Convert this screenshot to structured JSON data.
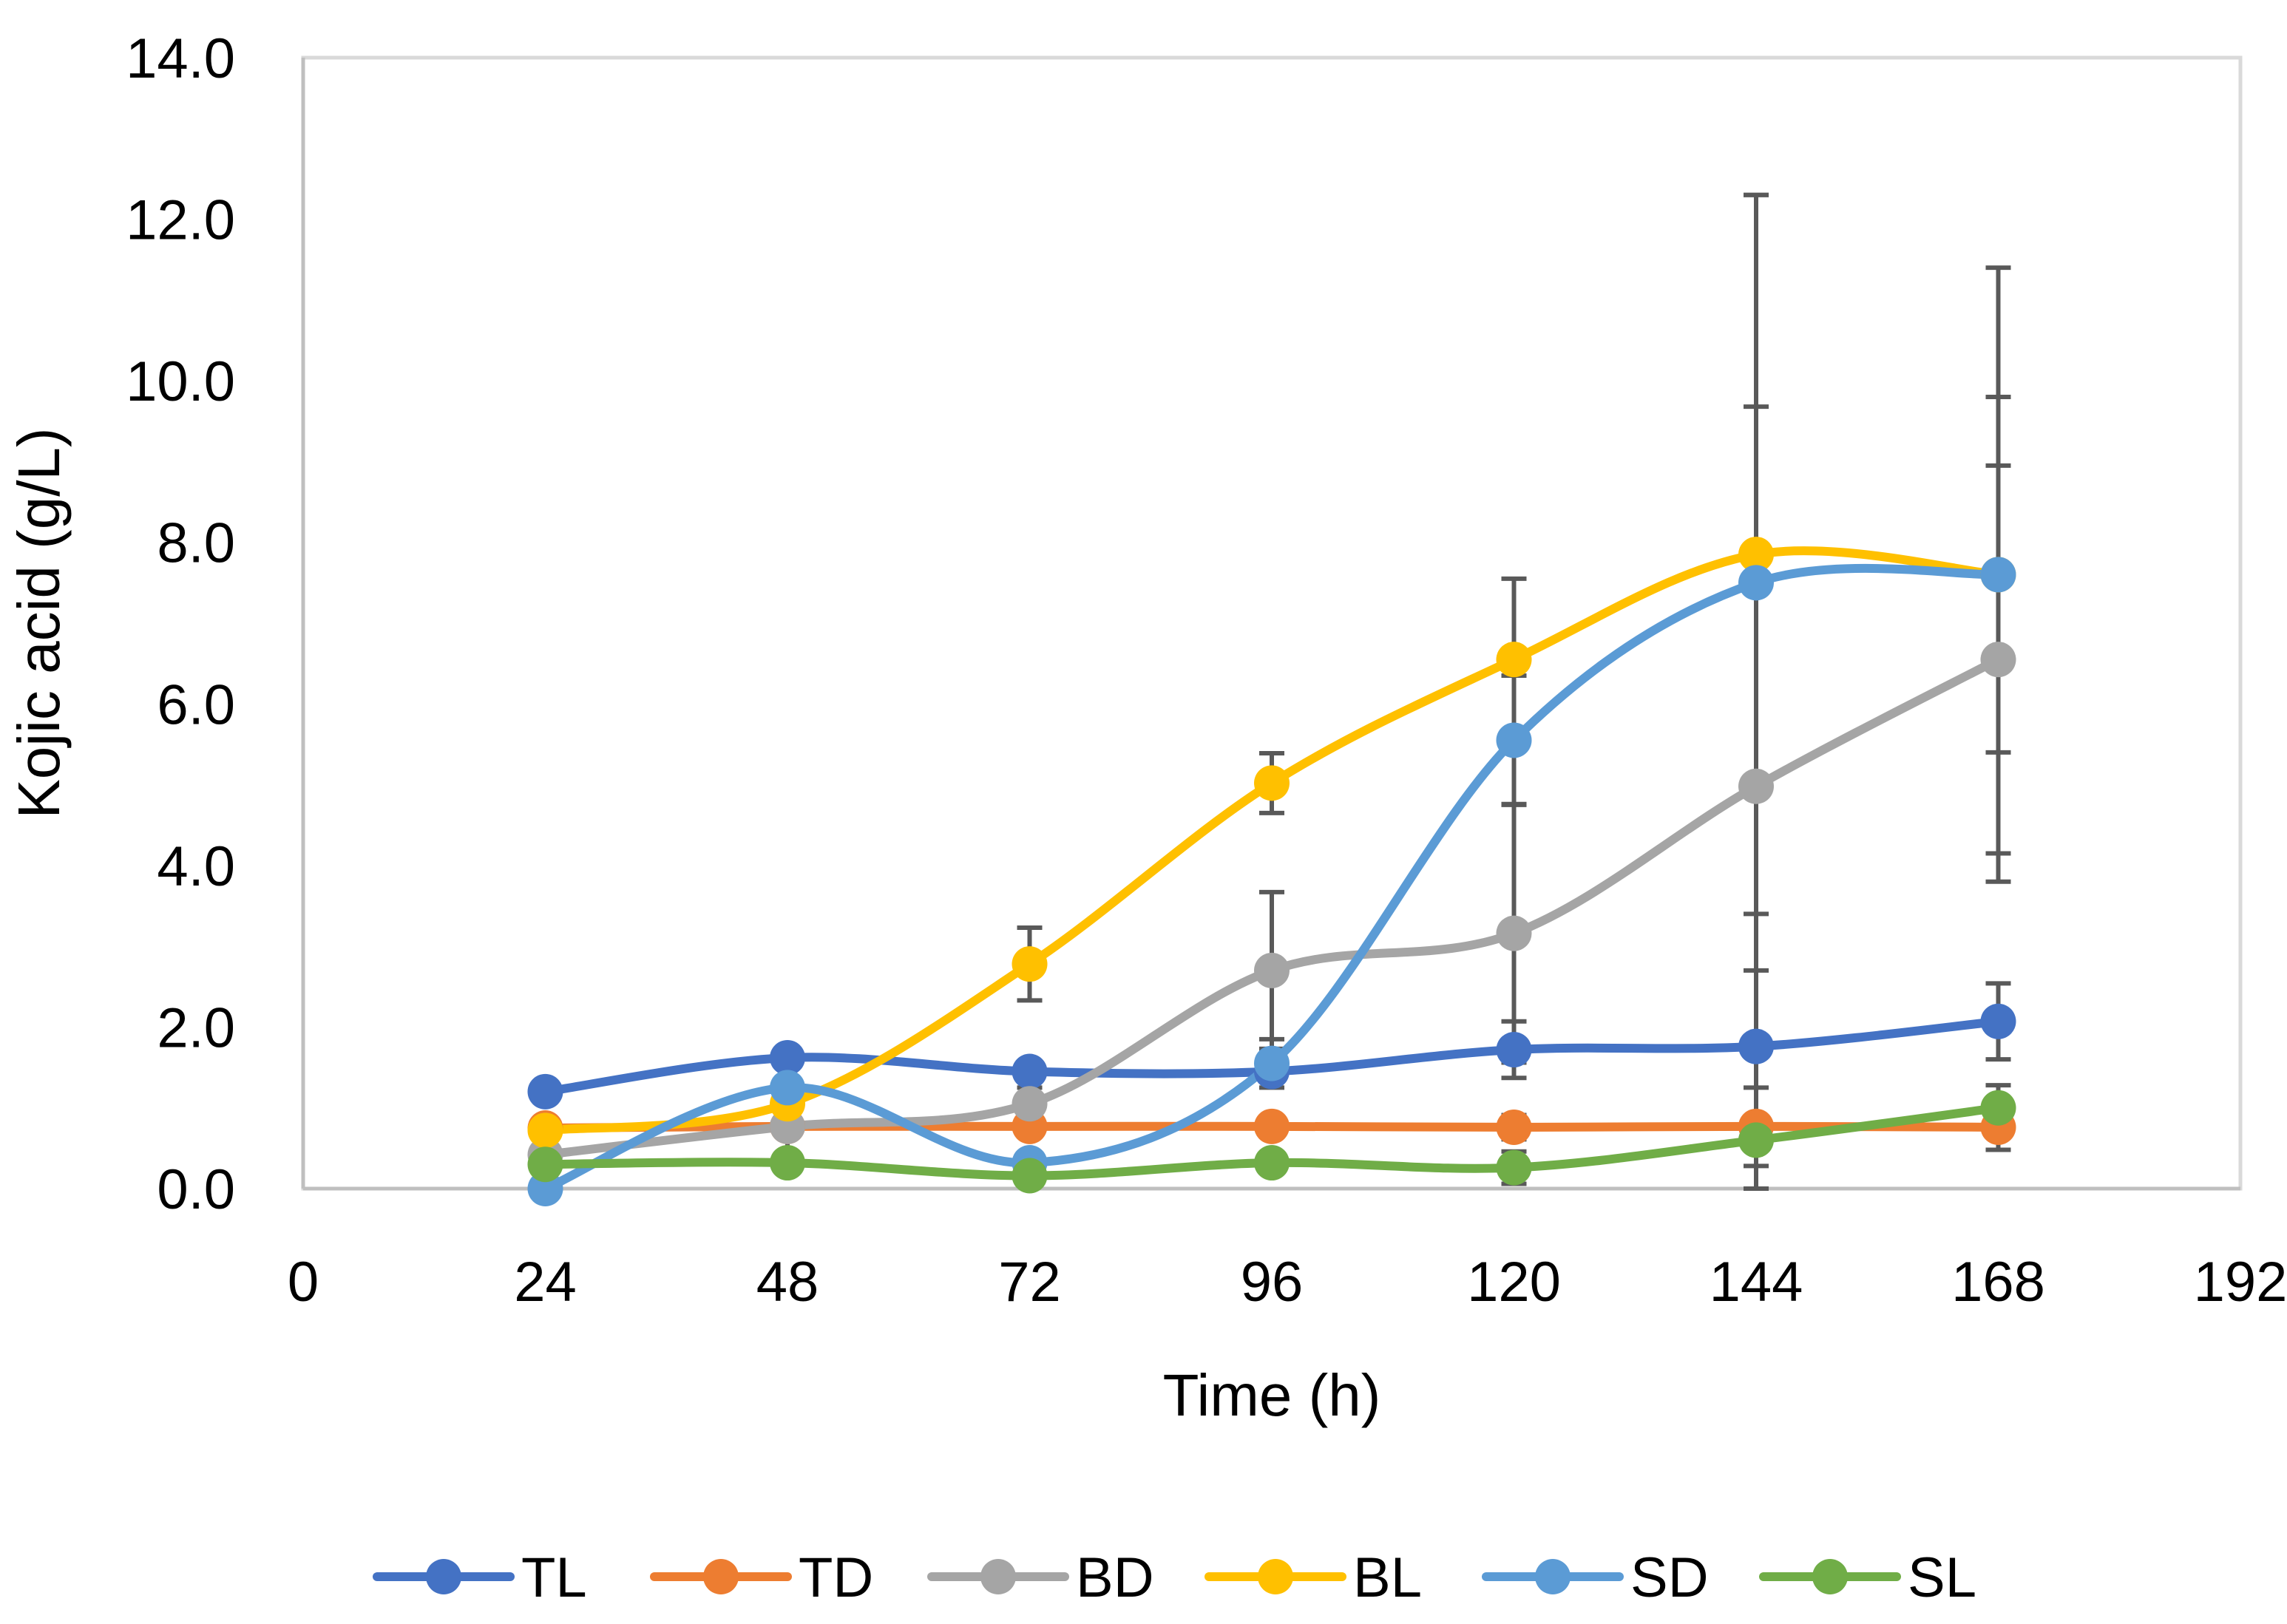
{
  "chart_data": {
    "type": "line",
    "title": "",
    "xlabel": "Time (h)",
    "ylabel": "Kojic acid (g/L)",
    "xlim": [
      0,
      192
    ],
    "ylim": [
      0,
      14
    ],
    "x_ticks": [
      "0",
      "24",
      "48",
      "72",
      "96",
      "120",
      "144",
      "168",
      "192"
    ],
    "y_ticks": [
      "0.0",
      "2.0",
      "4.0",
      "6.0",
      "8.0",
      "10.0",
      "12.0",
      "14.0"
    ],
    "x": [
      24,
      48,
      72,
      96,
      120,
      144,
      168
    ],
    "legend_position": "bottom",
    "grid": false,
    "smoothed": true,
    "series": [
      {
        "name": "TL",
        "color": "#4472C4",
        "values": [
          1.2,
          1.62,
          1.45,
          1.45,
          1.72,
          1.76,
          2.07
        ],
        "errors": [
          0.12,
          0.1,
          0.08,
          0.1,
          0.35,
          0.12,
          0.47
        ]
      },
      {
        "name": "TD",
        "color": "#ED7D31",
        "values": [
          0.75,
          0.77,
          0.77,
          0.77,
          0.76,
          0.77,
          0.76
        ],
        "errors": [
          0.1,
          0.1,
          0.08,
          0.08,
          0.15,
          0.08,
          0.28
        ]
      },
      {
        "name": "BD",
        "color": "#A5A5A5",
        "values": [
          0.42,
          0.77,
          1.05,
          2.7,
          3.16,
          4.98,
          6.55
        ],
        "errors": [
          0.2,
          0.55,
          0.2,
          0.97,
          1.6,
          4.7,
          2.4
        ]
      },
      {
        "name": "BL",
        "color": "#FFC000",
        "values": [
          0.72,
          1.05,
          2.78,
          5.02,
          6.55,
          7.85,
          7.6
        ],
        "errors": [
          0.15,
          0.15,
          0.45,
          0.37,
          1.0,
          4.45,
          3.8
        ]
      },
      {
        "name": "SD",
        "color": "#5B9BD5",
        "values": [
          0.0,
          1.25,
          0.32,
          1.55,
          5.55,
          7.5,
          7.6
        ],
        "errors": [
          0.0,
          0.3,
          0.1,
          0.3,
          0.8,
          4.8,
          2.2
        ]
      },
      {
        "name": "SL",
        "color": "#70AD47",
        "values": [
          0.3,
          0.32,
          0.16,
          0.32,
          0.26,
          0.6,
          1.0
        ],
        "errors": [
          0.1,
          0.1,
          0.05,
          0.1,
          0.2,
          0.65,
          0.28
        ]
      }
    ]
  }
}
